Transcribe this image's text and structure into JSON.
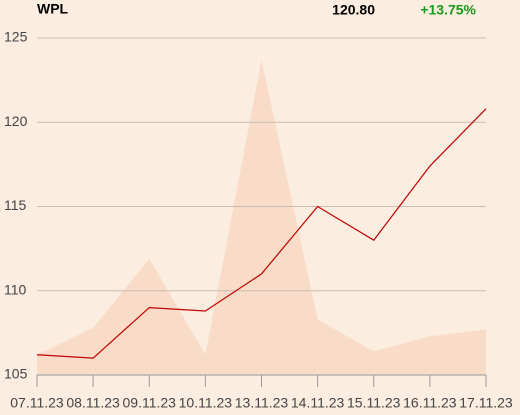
{
  "chart_data": {
    "type": "line",
    "title": "WPL",
    "price": "120.80",
    "change": "+13.75%",
    "change_color": "#1a9a1a",
    "categories": [
      "07.11.23",
      "08.11.23",
      "09.11.23",
      "10.11.23",
      "13.11.23",
      "14.11.23",
      "15.11.23",
      "16.11.23",
      "17.11.23"
    ],
    "series": [
      {
        "type": "area",
        "color": "#f8dcc8",
        "values": [
          106.2,
          107.8,
          111.9,
          106.2,
          123.7,
          108.3,
          106.4,
          107.3,
          107.7
        ]
      },
      {
        "type": "line",
        "color": "#c00000",
        "values": [
          106.2,
          106.0,
          109.0,
          108.8,
          111.0,
          115.0,
          113.0,
          117.4,
          120.8
        ]
      }
    ],
    "ylim": [
      105,
      125
    ],
    "yticks": [
      105,
      110,
      115,
      120,
      125
    ],
    "grid": true
  }
}
